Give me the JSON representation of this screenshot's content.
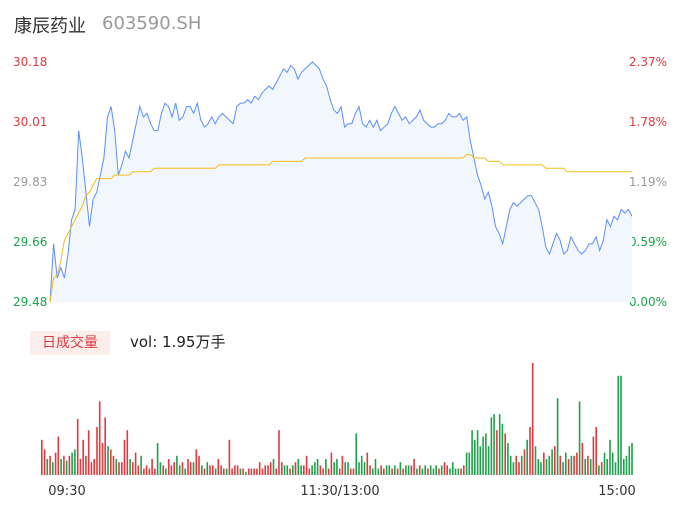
{
  "header": {
    "name": "康辰药业",
    "code": "603590.SH"
  },
  "volume_panel": {
    "badge": "日成交量",
    "vol_label": "vol: 1.95万手"
  },
  "colors": {
    "price_line": "#5b8ff9",
    "avg_line": "#f6bd16",
    "up": "#e0393e",
    "down": "#1aa34a",
    "neutral": "#999999",
    "fill": "#f2f6fd"
  },
  "chart_data": [
    {
      "type": "line",
      "title": "",
      "y_ticks": [
        "30.18",
        "30.01",
        "29.83",
        "29.66",
        "29.48"
      ],
      "y_right_ticks": [
        "2.37%",
        "1.78%",
        "1.19%",
        "0.59%",
        "0.00%"
      ],
      "ylim": [
        29.48,
        30.18
      ],
      "x_ticks": [
        "09:30",
        "11:30/13:00",
        "15:00"
      ],
      "series": [
        {
          "key": "price",
          "values": [
            29.48,
            29.65,
            29.55,
            29.58,
            29.55,
            29.62,
            29.72,
            29.75,
            29.98,
            29.9,
            29.8,
            29.7,
            29.78,
            29.8,
            29.85,
            29.9,
            30.02,
            30.05,
            29.98,
            29.85,
            29.88,
            29.92,
            29.9,
            29.95,
            30.0,
            30.05,
            30.02,
            30.03,
            30.0,
            29.98,
            29.98,
            30.03,
            30.06,
            30.05,
            30.02,
            30.06,
            30.01,
            30.02,
            30.05,
            30.05,
            30.03,
            30.06,
            30.01,
            29.99,
            30.0,
            30.02,
            30.0,
            30.02,
            30.03,
            30.02,
            30.01,
            30.0,
            30.05,
            30.06,
            30.06,
            30.07,
            30.06,
            30.08,
            30.07,
            30.09,
            30.1,
            30.11,
            30.1,
            30.12,
            30.14,
            30.16,
            30.15,
            30.17,
            30.16,
            30.13,
            30.15,
            30.16,
            30.17,
            30.18,
            30.17,
            30.16,
            30.13,
            30.11,
            30.07,
            30.04,
            30.03,
            30.05,
            29.99,
            30.0,
            30.0,
            30.03,
            30.05,
            30.0,
            29.99,
            30.01,
            29.99,
            30.01,
            29.98,
            29.99,
            30.0,
            30.03,
            30.05,
            30.03,
            30.01,
            30.02,
            30.0,
            30.01,
            30.02,
            30.04,
            30.01,
            30.0,
            29.99,
            29.99,
            30.0,
            30.0,
            30.01,
            30.03,
            30.02,
            30.02,
            30.03,
            30.01,
            30.02,
            29.95,
            29.9,
            29.85,
            29.82,
            29.78,
            29.8,
            29.76,
            29.7,
            29.68,
            29.65,
            29.7,
            29.75,
            29.77,
            29.76,
            29.77,
            29.78,
            29.79,
            29.79,
            29.77,
            29.75,
            29.7,
            29.64,
            29.62,
            29.65,
            29.68,
            29.66,
            29.62,
            29.63,
            29.67,
            29.65,
            29.63,
            29.62,
            29.63,
            29.65,
            29.65,
            29.67,
            29.63,
            29.66,
            29.72,
            29.7,
            29.73,
            29.72,
            29.75,
            29.74,
            29.75,
            29.73
          ]
        },
        {
          "key": "avg",
          "values": [
            29.48,
            29.55,
            29.56,
            29.6,
            29.66,
            29.68,
            29.7,
            29.72,
            29.74,
            29.76,
            29.79,
            29.8,
            29.82,
            29.84,
            29.84,
            29.84,
            29.84,
            29.84,
            29.85,
            29.85,
            29.85,
            29.85,
            29.85,
            29.86,
            29.86,
            29.86,
            29.86,
            29.86,
            29.86,
            29.87,
            29.87,
            29.87,
            29.87,
            29.87,
            29.87,
            29.87,
            29.87,
            29.87,
            29.87,
            29.87,
            29.87,
            29.87,
            29.87,
            29.87,
            29.87,
            29.87,
            29.87,
            29.88,
            29.88,
            29.88,
            29.88,
            29.88,
            29.88,
            29.88,
            29.88,
            29.88,
            29.88,
            29.88,
            29.88,
            29.88,
            29.88,
            29.88,
            29.89,
            29.89,
            29.89,
            29.89,
            29.89,
            29.89,
            29.89,
            29.89,
            29.89,
            29.9,
            29.9,
            29.9,
            29.9,
            29.9,
            29.9,
            29.9,
            29.9,
            29.9,
            29.9,
            29.9,
            29.9,
            29.9,
            29.9,
            29.9,
            29.9,
            29.9,
            29.9,
            29.9,
            29.9,
            29.9,
            29.9,
            29.9,
            29.9,
            29.9,
            29.9,
            29.9,
            29.9,
            29.9,
            29.9,
            29.9,
            29.9,
            29.9,
            29.9,
            29.9,
            29.9,
            29.9,
            29.9,
            29.9,
            29.9,
            29.9,
            29.9,
            29.9,
            29.9,
            29.9,
            29.91,
            29.91,
            29.9,
            29.9,
            29.9,
            29.9,
            29.89,
            29.89,
            29.89,
            29.89,
            29.88,
            29.88,
            29.88,
            29.88,
            29.88,
            29.88,
            29.88,
            29.88,
            29.88,
            29.88,
            29.88,
            29.88,
            29.87,
            29.87,
            29.87,
            29.87,
            29.87,
            29.87,
            29.86,
            29.86,
            29.86,
            29.86,
            29.86,
            29.86,
            29.86,
            29.86,
            29.86,
            29.86,
            29.86,
            29.86,
            29.86,
            29.86,
            29.86,
            29.86,
            29.86,
            29.86,
            29.86
          ]
        }
      ]
    },
    {
      "type": "bar",
      "title": "",
      "values": [
        22,
        16,
        10,
        12,
        8,
        14,
        24,
        10,
        12,
        9,
        12,
        14,
        16,
        35,
        10,
        22,
        12,
        28,
        8,
        10,
        30,
        46,
        20,
        36,
        18,
        16,
        12,
        10,
        8,
        8,
        22,
        28,
        10,
        8,
        14,
        6,
        12,
        4,
        6,
        4,
        10,
        4,
        20,
        8,
        6,
        4,
        10,
        6,
        8,
        12,
        6,
        8,
        4,
        10,
        8,
        8,
        16,
        12,
        6,
        4,
        8,
        6,
        6,
        4,
        10,
        6,
        4,
        4,
        22,
        4,
        6,
        6,
        4,
        4,
        2,
        4,
        4,
        4,
        4,
        8,
        4,
        6,
        6,
        8,
        10,
        4,
        28,
        8,
        6,
        6,
        4,
        6,
        8,
        10,
        6,
        6,
        12,
        4,
        6,
        8,
        10,
        6,
        4,
        10,
        4,
        14,
        8,
        10,
        4,
        12,
        8,
        8,
        4,
        4,
        26,
        8,
        12,
        8,
        14,
        6,
        4,
        10,
        4,
        6,
        4,
        6,
        6,
        4,
        6,
        4,
        8,
        4,
        6,
        6,
        6,
        10,
        4,
        6,
        4,
        6,
        4,
        6,
        4,
        6,
        4,
        6,
        8,
        6,
        4,
        8,
        4,
        4,
        4,
        6,
        14,
        14,
        28,
        22,
        28,
        18,
        24,
        26,
        18,
        36,
        38,
        28,
        38,
        32,
        26,
        20,
        12,
        8,
        12,
        8,
        12,
        16,
        22,
        30,
        70,
        18,
        10,
        8,
        14,
        10,
        12,
        16,
        18,
        48,
        12,
        8,
        14,
        10,
        12,
        12,
        14,
        46,
        20,
        10,
        12,
        10,
        24,
        30,
        6,
        8,
        14,
        10,
        22,
        14,
        8,
        62,
        62,
        10,
        12,
        18,
        20
      ],
      "directions": [
        "up",
        "up",
        "down",
        "up",
        "down",
        "up",
        "up",
        "down",
        "up",
        "down",
        "up",
        "down",
        "down",
        "up",
        "up",
        "up",
        "up",
        "up",
        "up",
        "up",
        "up",
        "up",
        "up",
        "up",
        "down",
        "up",
        "up",
        "down",
        "up",
        "up",
        "up",
        "up",
        "down",
        "up",
        "up",
        "up",
        "down",
        "up",
        "up",
        "up",
        "up",
        "up",
        "down",
        "down",
        "up",
        "down",
        "up",
        "up",
        "up",
        "down",
        "down",
        "up",
        "down",
        "up",
        "up",
        "down",
        "up",
        "up",
        "down",
        "up",
        "down",
        "up",
        "up",
        "down",
        "up",
        "up",
        "up",
        "down",
        "up",
        "up",
        "up",
        "up",
        "down",
        "up",
        "down",
        "up",
        "up",
        "up",
        "up",
        "up",
        "up",
        "up",
        "up",
        "up",
        "down",
        "up",
        "up",
        "up",
        "down",
        "down",
        "up",
        "down",
        "up",
        "down",
        "down",
        "up",
        "up",
        "up",
        "down",
        "down",
        "down",
        "up",
        "up",
        "down",
        "up",
        "up",
        "down",
        "down",
        "up",
        "up",
        "down",
        "down",
        "up",
        "up",
        "down",
        "down",
        "down",
        "down",
        "up",
        "up",
        "down",
        "down",
        "down",
        "up",
        "up",
        "down",
        "down",
        "up",
        "down",
        "up",
        "down",
        "up",
        "down",
        "down",
        "up",
        "up",
        "down",
        "up",
        "down",
        "down",
        "up",
        "down",
        "down",
        "down",
        "up",
        "down",
        "up",
        "up",
        "down",
        "down",
        "down",
        "down",
        "up",
        "up",
        "down",
        "down",
        "down",
        "down",
        "down",
        "down",
        "down",
        "down",
        "down",
        "down",
        "down",
        "up",
        "down",
        "down",
        "up",
        "down",
        "down",
        "down",
        "up",
        "up",
        "down",
        "up",
        "down",
        "up",
        "up",
        "down",
        "down",
        "down",
        "up",
        "down",
        "down",
        "down",
        "up",
        "down",
        "up",
        "down",
        "down",
        "up",
        "down",
        "up",
        "up",
        "down",
        "up",
        "down",
        "up",
        "down",
        "up",
        "up",
        "down",
        "up",
        "down",
        "down",
        "down",
        "down",
        "down"
      ],
      "x_ticks": [
        "09:30",
        "11:30/13:00",
        "15:00"
      ]
    }
  ]
}
